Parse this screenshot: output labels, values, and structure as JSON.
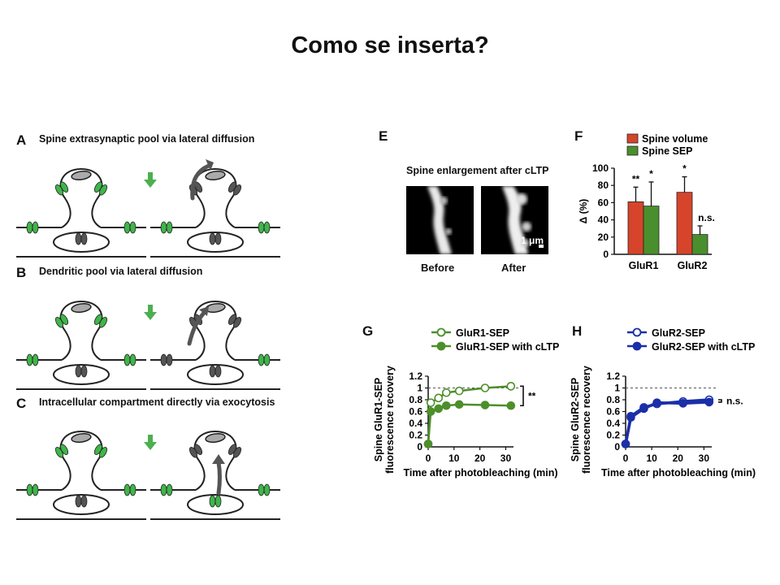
{
  "slide": {
    "title": "Como se inserta?"
  },
  "panels": {
    "A": {
      "letter": "A",
      "caption": "Spine extrasynaptic pool via lateral diffusion"
    },
    "B": {
      "letter": "B",
      "caption": "Dendritic pool via lateral diffusion"
    },
    "C": {
      "letter": "C",
      "caption": "Intracellular compartment directly via exocytosis"
    },
    "E": {
      "letter": "E",
      "caption": "Spine enlargement after cLTP",
      "before_label": "Before",
      "after_label": "After",
      "scale_bar": "1 μm"
    },
    "F": {
      "letter": "F"
    },
    "G": {
      "letter": "G"
    },
    "H": {
      "letter": "H"
    }
  },
  "colors": {
    "receptor_green": "#3fb54a",
    "receptor_dark": "#555555",
    "arrow_green": "#4caf50",
    "spine_volume": "#d6452b",
    "spine_sep": "#4a8f2e",
    "glur1": "#4d8f2a",
    "glur2": "#1a2fa8"
  },
  "chart_data": [
    {
      "id": "F",
      "type": "bar",
      "categories": [
        "GluR1",
        "GluR2"
      ],
      "ylabel": "Δ (%)",
      "ylim": [
        0,
        100
      ],
      "yticks": [
        "0",
        "20",
        "40",
        "60",
        "80",
        "100"
      ],
      "series": [
        {
          "name": "Spine volume",
          "values": [
            61,
            72
          ],
          "errors": [
            17,
            18
          ],
          "color": "#d6452b"
        },
        {
          "name": "Spine SEP",
          "values": [
            56,
            23
          ],
          "errors": [
            28,
            10
          ],
          "color": "#4a8f2e"
        }
      ],
      "annotations": [
        {
          "category": "GluR1",
          "series": "Spine volume",
          "text": "**"
        },
        {
          "category": "GluR1",
          "series": "Spine SEP",
          "text": "*"
        },
        {
          "category": "GluR2",
          "series": "Spine volume",
          "text": "*"
        },
        {
          "category": "GluR2",
          "series": "Spine SEP",
          "text": "n.s."
        }
      ],
      "legend_position": "top"
    },
    {
      "id": "G",
      "type": "line",
      "xlabel": "Time after photobleaching (min)",
      "ylabel": "Spine GluR1-SEP fluorescence recovery",
      "xlim": [
        0,
        33
      ],
      "ylim": [
        0,
        1.2
      ],
      "xticks": [
        "0",
        "10",
        "20",
        "30"
      ],
      "yticks": [
        "0",
        "0.2",
        "0.4",
        "0.6",
        "0.8",
        "1",
        "1.2"
      ],
      "reference_line": 1,
      "series": [
        {
          "name": "GluR1-SEP",
          "marker": "open",
          "x": [
            0,
            1,
            4,
            7,
            12,
            22,
            32
          ],
          "y": [
            0.05,
            0.75,
            0.83,
            0.92,
            0.95,
            1.0,
            1.03
          ],
          "color": "#4d8f2a"
        },
        {
          "name": "GluR1-SEP with cLTP",
          "marker": "filled",
          "x": [
            0,
            1,
            4,
            7,
            12,
            22,
            32
          ],
          "y": [
            0.05,
            0.6,
            0.65,
            0.7,
            0.72,
            0.71,
            0.7
          ],
          "color": "#4d8f2a"
        }
      ],
      "significance": "**",
      "legend_position": "top"
    },
    {
      "id": "H",
      "type": "line",
      "xlabel": "Time after photobleaching (min)",
      "ylabel": "Spine GluR2-SEP fluorescence recovery",
      "xlim": [
        0,
        33
      ],
      "ylim": [
        0,
        1.2
      ],
      "xticks": [
        "0",
        "10",
        "20",
        "30"
      ],
      "yticks": [
        "0",
        "0.2",
        "0.4",
        "0.6",
        "0.8",
        "1",
        "1.2"
      ],
      "reference_line": 1,
      "series": [
        {
          "name": "GluR2-SEP",
          "marker": "open",
          "x": [
            0,
            2,
            7,
            12,
            22,
            32
          ],
          "y": [
            0.05,
            0.52,
            0.67,
            0.73,
            0.77,
            0.8
          ],
          "color": "#1a2fa8"
        },
        {
          "name": "GluR2-SEP with cLTP",
          "marker": "filled",
          "x": [
            0,
            2,
            7,
            12,
            22,
            32
          ],
          "y": [
            0.05,
            0.5,
            0.65,
            0.75,
            0.74,
            0.76
          ],
          "color": "#1a2fa8"
        }
      ],
      "significance": "n.s.",
      "legend_position": "top"
    }
  ]
}
